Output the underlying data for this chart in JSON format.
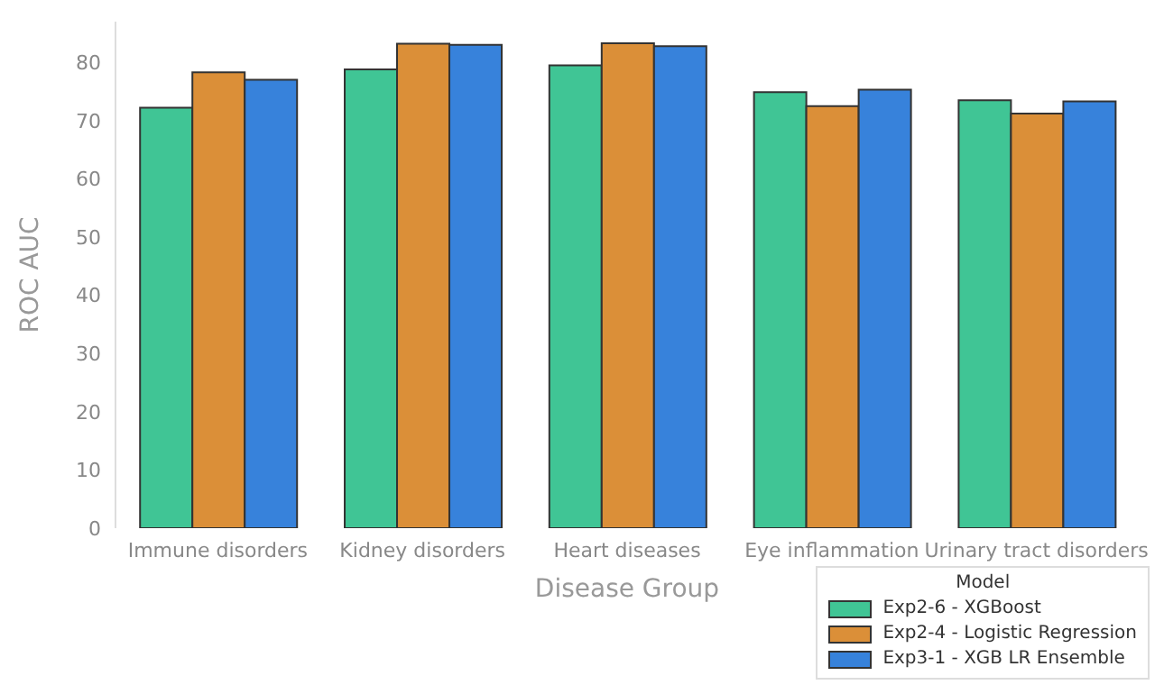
{
  "chart_data": {
    "type": "bar",
    "xlabel": "Disease Group",
    "ylabel": "ROC AUC",
    "legend_title": "Model",
    "categories": [
      "Immune disorders",
      "Kidney disorders",
      "Heart diseases",
      "Eye inflammation",
      "Urinary tract disorders"
    ],
    "series": [
      {
        "name": "Exp2-6 - XGBoost",
        "color": "#40c595",
        "values": [
          72.2,
          78.8,
          79.5,
          74.9,
          73.5
        ]
      },
      {
        "name": "Exp2-4 - Logistic Regression",
        "color": "#db8f38",
        "values": [
          78.3,
          83.2,
          83.3,
          72.5,
          71.2
        ]
      },
      {
        "name": "Exp3-1 - XGB LR Ensemble",
        "color": "#3782db",
        "values": [
          77.0,
          83.0,
          82.8,
          75.3,
          73.3
        ]
      }
    ],
    "ylim": [
      0,
      87
    ],
    "yticks": [
      0,
      10,
      20,
      30,
      40,
      50,
      60,
      70,
      80
    ],
    "grid": false,
    "legend": "bottom right"
  }
}
